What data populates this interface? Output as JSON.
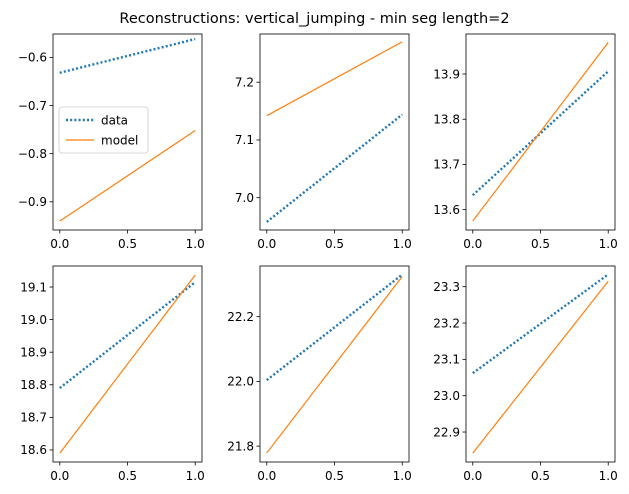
{
  "title": "Reconstructions: vertical_jumping - min seg length=2",
  "colors": {
    "data": "#1f77b4",
    "model": "#ff7f0e",
    "axis": "#000000"
  },
  "legend": {
    "placement": "center-left",
    "panel": 0,
    "entries": [
      "data",
      "model"
    ]
  },
  "chart_data": [
    {
      "type": "line",
      "x": [
        0,
        1
      ],
      "xlim": [
        -0.05,
        1.05
      ],
      "ylim": [
        -0.9585,
        -0.5515
      ],
      "xticks": [
        "0.0",
        "0.5",
        "1.0"
      ],
      "yticks": [
        "-0.9",
        "-0.8",
        "-0.7",
        "-0.6"
      ],
      "ytick_values": [
        -0.9,
        -0.8,
        -0.7,
        -0.6
      ],
      "series": [
        {
          "name": "data",
          "values": [
            -0.632,
            -0.562
          ]
        },
        {
          "name": "model",
          "values": [
            -0.94,
            -0.752
          ]
        }
      ]
    },
    {
      "type": "line",
      "x": [
        0,
        1
      ],
      "xlim": [
        -0.05,
        1.05
      ],
      "ylim": [
        6.944,
        7.2835
      ],
      "xticks": [
        "0.0",
        "0.5",
        "1.0"
      ],
      "yticks": [
        "7.0",
        "7.1",
        "7.2"
      ],
      "ytick_values": [
        7.0,
        7.1,
        7.2
      ],
      "series": [
        {
          "name": "data",
          "values": [
            6.958,
            7.144
          ]
        },
        {
          "name": "model",
          "values": [
            7.142,
            7.27
          ]
        }
      ]
    },
    {
      "type": "line",
      "x": [
        0,
        1
      ],
      "xlim": [
        -0.05,
        1.05
      ],
      "ylim": [
        13.555,
        13.9885
      ],
      "xticks": [
        "0.0",
        "0.5",
        "1.0"
      ],
      "yticks": [
        "13.6",
        "13.7",
        "13.8",
        "13.9"
      ],
      "ytick_values": [
        13.6,
        13.7,
        13.8,
        13.9
      ],
      "series": [
        {
          "name": "data",
          "values": [
            13.632,
            13.906
          ]
        },
        {
          "name": "model",
          "values": [
            13.575,
            13.97
          ]
        }
      ]
    },
    {
      "type": "line",
      "x": [
        0,
        1
      ],
      "xlim": [
        -0.05,
        1.05
      ],
      "ylim": [
        18.563,
        19.1645
      ],
      "xticks": [
        "0.0",
        "0.5",
        "1.0"
      ],
      "yticks": [
        "18.6",
        "18.7",
        "18.8",
        "18.9",
        "19.0",
        "19.1"
      ],
      "ytick_values": [
        18.6,
        18.7,
        18.8,
        18.9,
        19.0,
        19.1
      ],
      "series": [
        {
          "name": "data",
          "values": [
            18.79,
            19.115
          ]
        },
        {
          "name": "model",
          "values": [
            18.59,
            19.137
          ]
        }
      ]
    },
    {
      "type": "line",
      "x": [
        0,
        1
      ],
      "xlim": [
        -0.05,
        1.05
      ],
      "ylim": [
        21.751,
        22.3565
      ],
      "xticks": [
        "0.0",
        "0.5",
        "1.0"
      ],
      "yticks": [
        "21.8",
        "22.0",
        "22.2"
      ],
      "ytick_values": [
        21.8,
        22.0,
        22.2
      ],
      "series": [
        {
          "name": "data",
          "values": [
            22.004,
            22.33
          ]
        },
        {
          "name": "model",
          "values": [
            21.779,
            22.324
          ]
        }
      ]
    },
    {
      "type": "line",
      "x": [
        0,
        1
      ],
      "xlim": [
        -0.05,
        1.05
      ],
      "ylim": [
        22.8175,
        23.357
      ],
      "xticks": [
        "0.0",
        "0.5",
        "1.0"
      ],
      "yticks": [
        "22.9",
        "23.0",
        "23.1",
        "23.2",
        "23.3"
      ],
      "ytick_values": [
        22.9,
        23.0,
        23.1,
        23.2,
        23.3
      ],
      "series": [
        {
          "name": "data",
          "values": [
            23.062,
            23.334
          ]
        },
        {
          "name": "model",
          "values": [
            22.842,
            23.315
          ]
        }
      ]
    }
  ]
}
